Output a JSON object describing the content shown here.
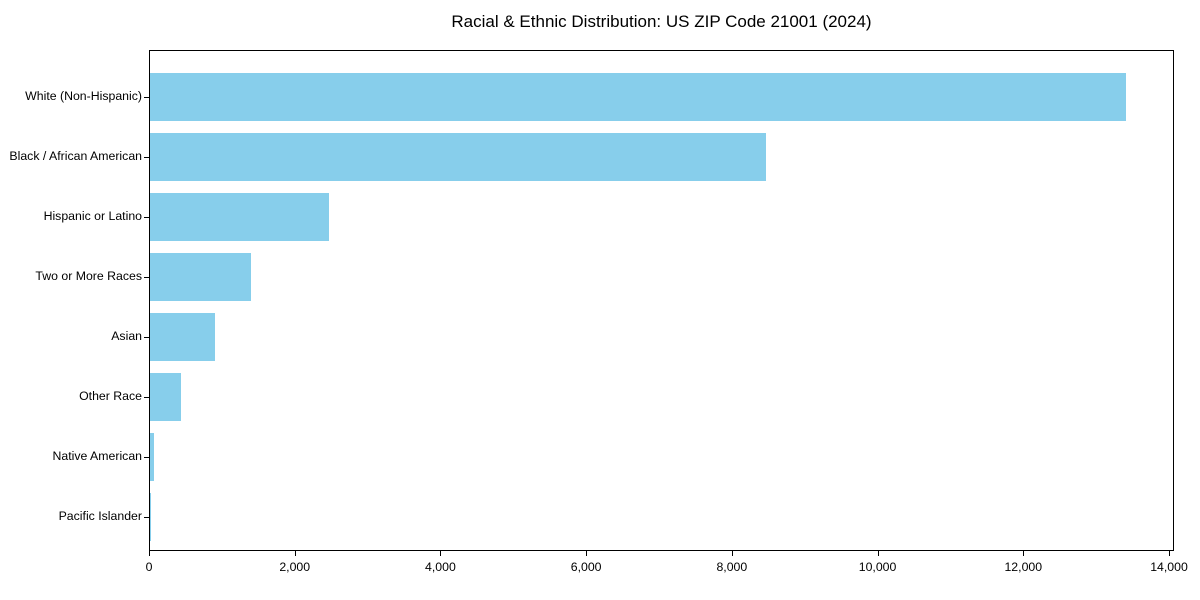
{
  "chart_data": {
    "type": "bar",
    "orientation": "horizontal",
    "title": "Racial & Ethnic Distribution: US ZIP Code 21001 (2024)",
    "categories": [
      "White (Non-Hispanic)",
      "Black / African American",
      "Hispanic or Latino",
      "Two or More Races",
      "Asian",
      "Other Race",
      "Native American",
      "Pacific Islander"
    ],
    "values": [
      13400,
      8450,
      2460,
      1390,
      890,
      430,
      55,
      10
    ],
    "xlabel": "",
    "ylabel": "",
    "xlim": [
      0,
      14000
    ],
    "xticks": [
      0,
      2000,
      4000,
      6000,
      8000,
      10000,
      12000,
      14000
    ],
    "xtick_labels": [
      "0",
      "2,000",
      "4,000",
      "6,000",
      "8,000",
      "10,000",
      "12,000",
      "14,000"
    ],
    "bar_color": "#87CEEB",
    "grid": false,
    "legend": null
  }
}
